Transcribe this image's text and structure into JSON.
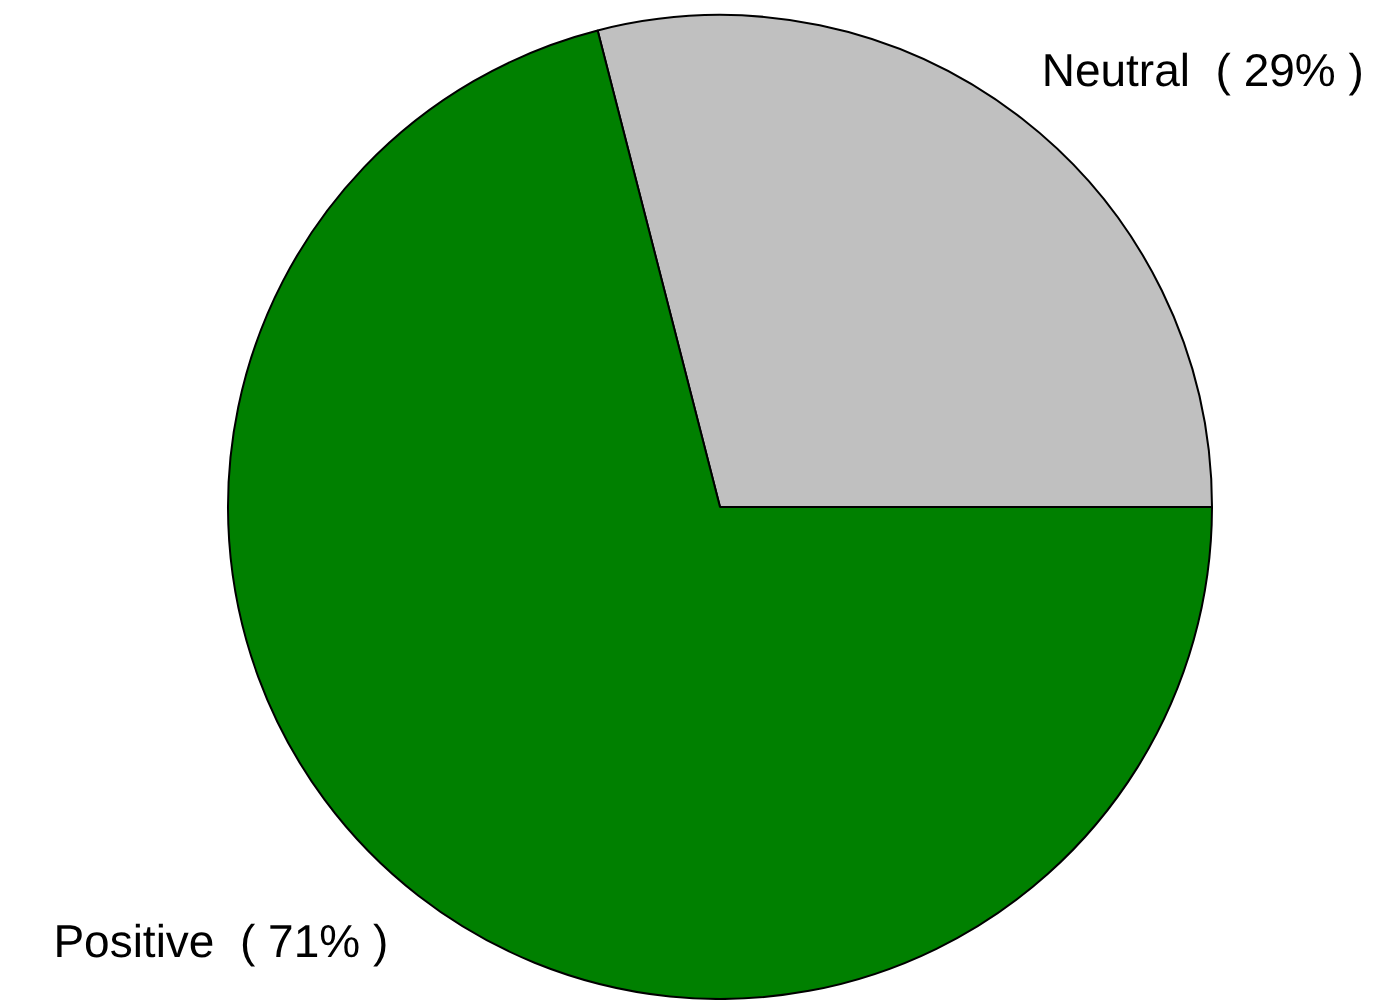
{
  "chart_data": {
    "type": "pie",
    "categories": [
      "Neutral",
      "Positive"
    ],
    "values": [
      29,
      71
    ],
    "colors": [
      "#c0c0c0",
      "#008000"
    ],
    "value_labels": [
      "( 29% )",
      "( 71% )"
    ],
    "legend": false
  }
}
